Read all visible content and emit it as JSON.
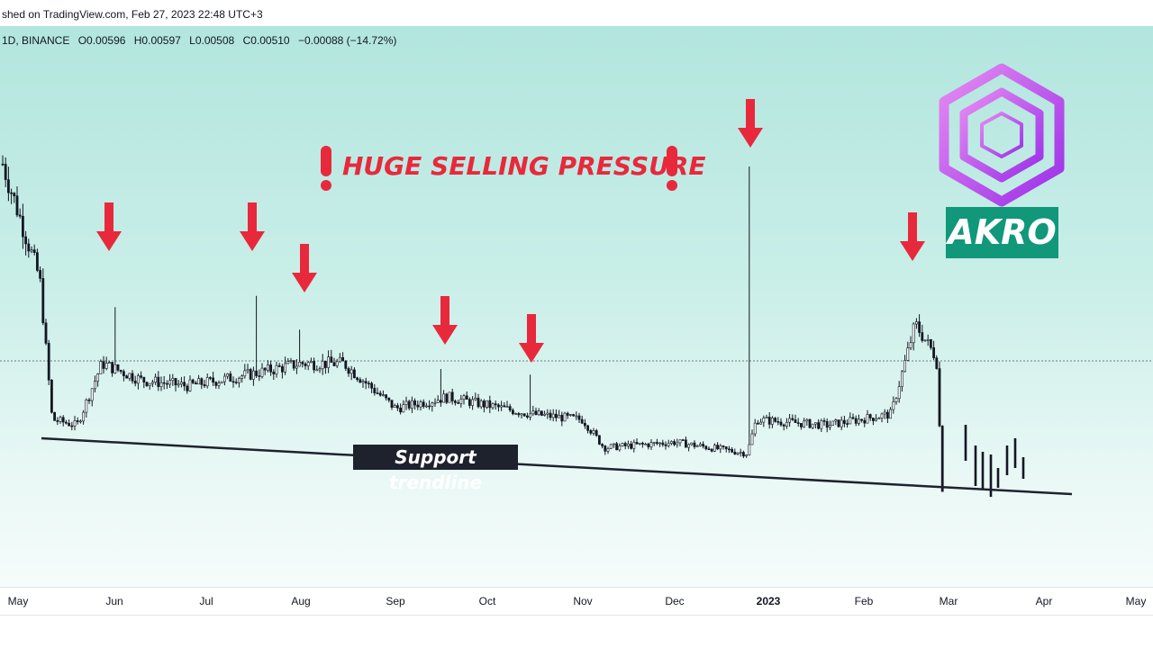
{
  "header": {
    "published": "shed on TradingView.com, Feb 27, 2023 22:48 UTC+3"
  },
  "legend": {
    "interval_exchange": "1D, BINANCE",
    "open": "O0.00596",
    "high": "H0.00597",
    "low": "L0.00508",
    "close": "C0.00510",
    "change": "−0.00088 (−14.72%)"
  },
  "annotations": {
    "headline": "HUGE SELLING PRESSURE",
    "support_label": "Support trendline",
    "badge": "AKRO"
  },
  "colors": {
    "arrow": "#e8293c",
    "candle": "#131722",
    "badge": "#11977a",
    "logo": "#b14ff0"
  },
  "icons": [
    "down-arrow-icon",
    "exclamation-icon",
    "akro-hexagon-logo"
  ],
  "chart_data": {
    "type": "candlestick",
    "symbol": "AKRO",
    "interval": "1D",
    "exchange": "BINANCE",
    "x_ticks": [
      "May",
      "Jun",
      "Jul",
      "Aug",
      "Sep",
      "Oct",
      "Nov",
      "Dec",
      "2023",
      "Feb",
      "Mar",
      "Apr",
      "May"
    ],
    "last_ohlc": {
      "open": 0.00596,
      "high": 0.00597,
      "low": 0.00508,
      "close": 0.0051,
      "change": -0.00088,
      "change_pct": -14.72
    },
    "price_path": [
      {
        "date": "2022-05-01",
        "close": 0.03
      },
      {
        "date": "2022-05-08",
        "close": 0.024
      },
      {
        "date": "2022-05-12",
        "close": 0.0115
      },
      {
        "date": "2022-05-20",
        "close": 0.011
      },
      {
        "date": "2022-05-28",
        "close": 0.0165
      },
      {
        "date": "2022-06-10",
        "close": 0.015
      },
      {
        "date": "2022-06-25",
        "close": 0.0145
      },
      {
        "date": "2022-07-15",
        "close": 0.0155
      },
      {
        "date": "2022-08-01",
        "close": 0.0165
      },
      {
        "date": "2022-08-15",
        "close": 0.0165
      },
      {
        "date": "2022-09-01",
        "close": 0.0125
      },
      {
        "date": "2022-09-18",
        "close": 0.0135
      },
      {
        "date": "2022-10-15",
        "close": 0.012
      },
      {
        "date": "2022-11-01",
        "close": 0.0115
      },
      {
        "date": "2022-11-08",
        "close": 0.009
      },
      {
        "date": "2022-12-01",
        "close": 0.0095
      },
      {
        "date": "2022-12-25",
        "close": 0.0085
      },
      {
        "date": "2022-12-28",
        "close": 0.0115
      },
      {
        "date": "2023-01-20",
        "close": 0.011
      },
      {
        "date": "2023-02-10",
        "close": 0.012
      },
      {
        "date": "2023-02-18",
        "close": 0.02
      },
      {
        "date": "2023-02-25",
        "close": 0.017
      },
      {
        "date": "2023-02-27",
        "close": 0.0051
      }
    ],
    "wick_highs": [
      {
        "date": "2022-06-01",
        "high": 0.0215
      },
      {
        "date": "2022-07-17",
        "high": 0.0225
      },
      {
        "date": "2022-08-01",
        "high": 0.0195
      },
      {
        "date": "2022-09-16",
        "high": 0.016
      },
      {
        "date": "2022-10-15",
        "high": 0.0155
      },
      {
        "date": "2022-12-26",
        "high": 0.034
      },
      {
        "date": "2023-02-18",
        "high": 0.02
      }
    ],
    "support_trendline": {
      "start": {
        "date": "2022-05-12",
        "price": 0.0108
      },
      "end": {
        "date": "2023-04-01",
        "price": 0.007
      }
    }
  }
}
